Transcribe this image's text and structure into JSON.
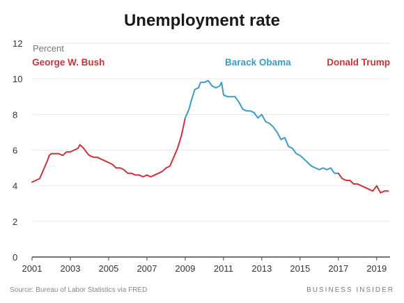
{
  "chart_data": {
    "type": "line",
    "title": "Unemployment rate",
    "ylabel": "Percent",
    "xlabel": "",
    "xlim": [
      2001,
      2019.7
    ],
    "ylim": [
      0,
      12
    ],
    "x_ticks": [
      "2001",
      "2003",
      "2005",
      "2007",
      "2009",
      "2011",
      "2013",
      "2015",
      "2017",
      "2019"
    ],
    "y_ticks": [
      "0",
      "2",
      "4",
      "6",
      "8",
      "10",
      "12"
    ],
    "grid": "horizontal",
    "colors": {
      "red": "#c8323a",
      "blue": "#3a9cc0",
      "axis": "#444444",
      "grid": "#e6e6e6"
    },
    "series": [
      {
        "name": "George W. Bush",
        "color": "#c8323a",
        "x": [
          2001.0,
          2001.2,
          2001.4,
          2001.6,
          2001.8,
          2001.9,
          2002.0,
          2002.2,
          2002.4,
          2002.6,
          2002.8,
          2003.0,
          2003.2,
          2003.4,
          2003.5,
          2003.7,
          2003.9,
          2004.0,
          2004.2,
          2004.4,
          2004.6,
          2004.8,
          2005.0,
          2005.2,
          2005.4,
          2005.6,
          2005.8,
          2006.0,
          2006.2,
          2006.4,
          2006.6,
          2006.8,
          2007.0,
          2007.2,
          2007.4,
          2007.6,
          2007.8,
          2008.0,
          2008.2,
          2008.4,
          2008.6,
          2008.8,
          2009.0
        ],
        "y": [
          4.2,
          4.3,
          4.4,
          4.9,
          5.4,
          5.7,
          5.8,
          5.8,
          5.8,
          5.7,
          5.9,
          5.9,
          6.0,
          6.1,
          6.3,
          6.1,
          5.8,
          5.7,
          5.6,
          5.6,
          5.5,
          5.4,
          5.3,
          5.2,
          5.0,
          5.0,
          4.9,
          4.7,
          4.7,
          4.6,
          4.6,
          4.5,
          4.6,
          4.5,
          4.6,
          4.7,
          4.8,
          5.0,
          5.1,
          5.6,
          6.1,
          6.8,
          7.8
        ]
      },
      {
        "name": "Barack Obama",
        "color": "#3a9cc0",
        "x": [
          2009.0,
          2009.2,
          2009.3,
          2009.5,
          2009.7,
          2009.8,
          2010.0,
          2010.2,
          2010.4,
          2010.6,
          2010.8,
          2010.9,
          2011.0,
          2011.2,
          2011.4,
          2011.6,
          2011.8,
          2012.0,
          2012.2,
          2012.4,
          2012.6,
          2012.8,
          2013.0,
          2013.2,
          2013.4,
          2013.6,
          2013.8,
          2014.0,
          2014.2,
          2014.4,
          2014.6,
          2014.8,
          2015.0,
          2015.2,
          2015.4,
          2015.6,
          2015.8,
          2016.0,
          2016.2,
          2016.4,
          2016.6,
          2016.8,
          2017.0
        ],
        "y": [
          7.8,
          8.3,
          8.7,
          9.4,
          9.5,
          9.8,
          9.8,
          9.9,
          9.6,
          9.5,
          9.6,
          9.8,
          9.1,
          9.0,
          9.0,
          9.0,
          8.7,
          8.3,
          8.2,
          8.2,
          8.1,
          7.8,
          8.0,
          7.6,
          7.5,
          7.3,
          7.0,
          6.6,
          6.7,
          6.2,
          6.1,
          5.8,
          5.7,
          5.5,
          5.3,
          5.1,
          5.0,
          4.9,
          5.0,
          4.9,
          5.0,
          4.7,
          4.7
        ]
      },
      {
        "name": "Donald Trump",
        "color": "#c8323a",
        "x": [
          2017.0,
          2017.2,
          2017.4,
          2017.6,
          2017.8,
          2018.0,
          2018.2,
          2018.4,
          2018.6,
          2018.8,
          2019.0,
          2019.2,
          2019.4,
          2019.6
        ],
        "y": [
          4.7,
          4.4,
          4.3,
          4.3,
          4.1,
          4.1,
          4.0,
          3.9,
          3.8,
          3.7,
          4.0,
          3.6,
          3.7,
          3.7
        ]
      }
    ]
  },
  "footer": {
    "source": "Source: Bureau of Labor Statistics via FRED",
    "brand": "BUSINESS INSIDER"
  }
}
